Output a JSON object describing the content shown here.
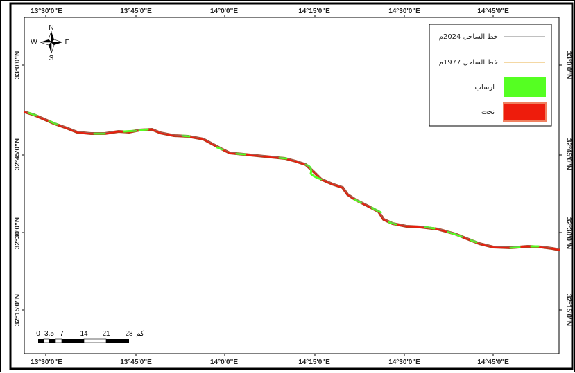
{
  "map": {
    "lon_labels": [
      "13°30'0\"E",
      "13°45'0\"E",
      "14°0'0\"E",
      "14°15'0\"E",
      "14°30'0\"E",
      "14°45'0\"E"
    ],
    "lat_labels": [
      "33°0'0\"N",
      "32°45'0\"N",
      "32°30'0\"N",
      "32°15'0\"N"
    ],
    "colors": {
      "frame": "#000000",
      "coastline_2024": "#808080",
      "coastline_1977": "#e8b04a",
      "accretion": "#55ff22",
      "erosion": "#ee1c0c",
      "coast_stroke": "#b04020"
    }
  },
  "compass": {
    "north": "N",
    "south": "S",
    "east": "E",
    "west": "W"
  },
  "legend": {
    "items": [
      {
        "label": "خط الساحل 2024م",
        "kind": "line",
        "color": "#808080"
      },
      {
        "label": "خط الساحل 1977م",
        "kind": "line",
        "color": "#e8b04a"
      },
      {
        "label": "ارساب",
        "kind": "patch",
        "color": "#55ff22"
      },
      {
        "label": "نحت",
        "kind": "patch",
        "color": "#ee1c0c"
      }
    ]
  },
  "scalebar": {
    "ticks": [
      "0",
      "3.5",
      "7",
      "14",
      "21",
      "28"
    ],
    "unit": "كم"
  }
}
